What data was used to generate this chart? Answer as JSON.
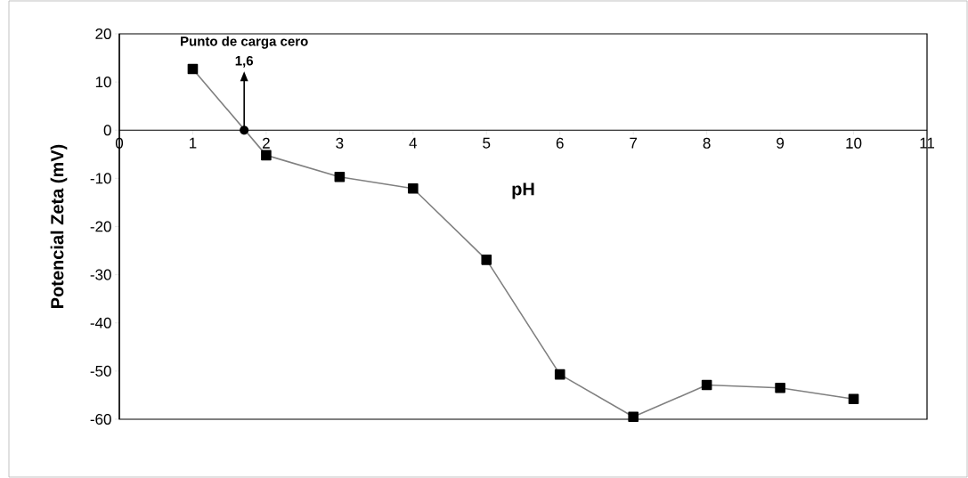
{
  "chart_data": {
    "type": "line",
    "xlabel": "pH",
    "ylabel": "Potencial Zeta (mV)",
    "x": [
      1,
      2,
      3,
      4,
      5,
      6,
      7,
      8,
      9,
      10
    ],
    "series": [
      {
        "color": "#808080",
        "values": [
          12.7,
          -5.2,
          -9.7,
          -12.1,
          -26.9,
          -50.7,
          -59.5,
          -52.9,
          -53.5,
          -55.8
        ]
      }
    ],
    "marker": "square",
    "line_style": "solid",
    "grid": false,
    "xlim": [
      0,
      11
    ],
    "xticks": [
      0,
      1,
      2,
      3,
      4,
      5,
      6,
      7,
      8,
      9,
      10,
      11
    ],
    "ylim": [
      -60,
      20
    ],
    "yticks": [
      -60,
      -50,
      -40,
      -30,
      -20,
      -10,
      0,
      10,
      20
    ],
    "annotations": [
      "Punto de carga cero",
      {
        "text": "1,6",
        "x": 1.7,
        "y": 0
      }
    ]
  }
}
